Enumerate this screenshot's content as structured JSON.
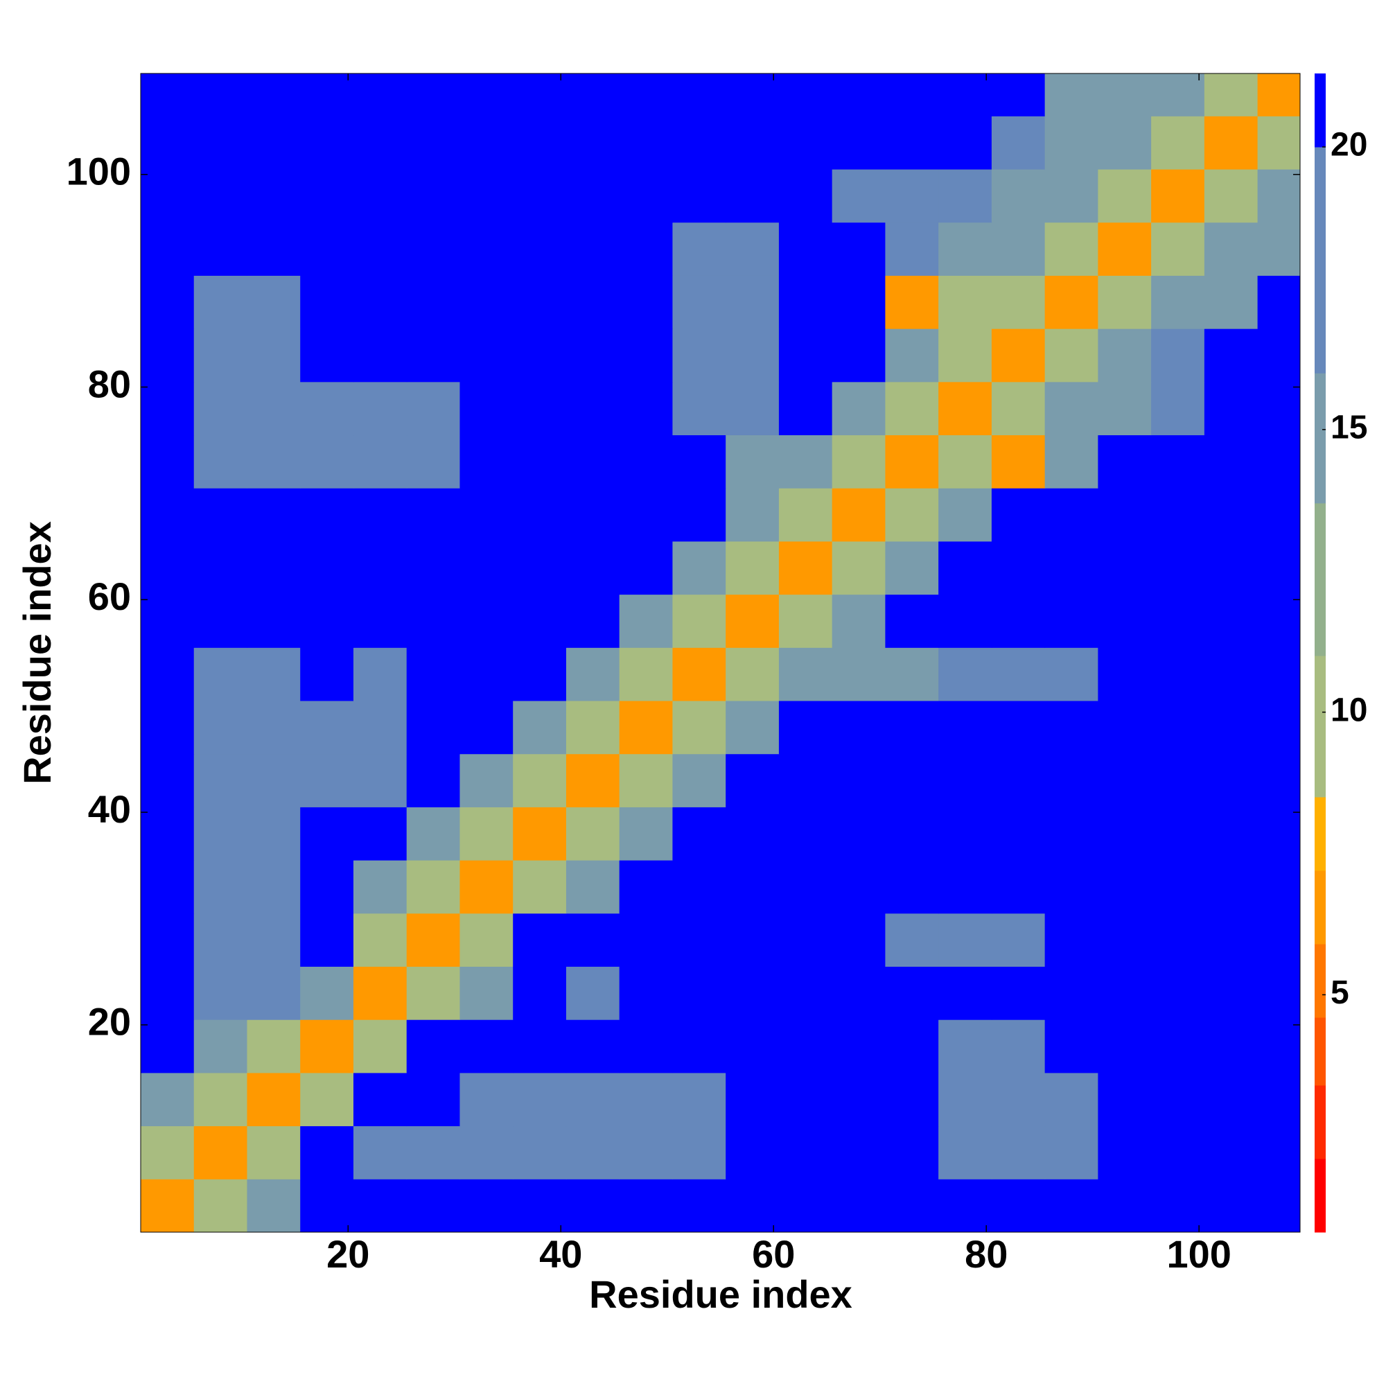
{
  "chart_data": {
    "type": "heatmap",
    "xlabel": "Residue index",
    "ylabel": "Residue index",
    "x": [
      3,
      8,
      13,
      18,
      23,
      28,
      33,
      38,
      43,
      48,
      53,
      58,
      63,
      68,
      73,
      78,
      83,
      88,
      93,
      98,
      103,
      108
    ],
    "y": [
      3,
      8,
      13,
      18,
      23,
      28,
      33,
      38,
      43,
      48,
      53,
      58,
      63,
      68,
      73,
      78,
      83,
      88,
      93,
      98,
      103,
      108
    ],
    "values": [
      [
        6,
        11,
        15,
        21,
        21,
        21,
        21,
        21,
        21,
        21,
        21,
        21,
        21,
        21,
        21,
        21,
        21,
        21,
        21,
        21,
        21,
        21
      ],
      [
        11,
        6,
        11,
        21,
        17,
        17,
        17,
        17,
        17,
        17,
        17,
        21,
        21,
        21,
        21,
        17,
        17,
        17,
        21,
        21,
        21,
        21
      ],
      [
        15,
        11,
        6,
        11,
        21,
        21,
        17,
        17,
        17,
        17,
        17,
        21,
        21,
        21,
        21,
        17,
        17,
        17,
        21,
        21,
        21,
        21
      ],
      [
        21,
        15,
        11,
        6,
        11,
        21,
        21,
        21,
        21,
        21,
        21,
        21,
        21,
        21,
        21,
        17,
        17,
        21,
        21,
        21,
        21,
        21
      ],
      [
        21,
        17,
        17,
        15,
        6,
        11,
        15,
        21,
        17,
        21,
        21,
        21,
        21,
        21,
        21,
        21,
        21,
        21,
        21,
        21,
        21,
        21
      ],
      [
        21,
        17,
        17,
        21,
        11,
        6,
        11,
        21,
        21,
        21,
        21,
        21,
        21,
        21,
        17,
        17,
        17,
        21,
        21,
        21,
        21,
        21
      ],
      [
        21,
        17,
        17,
        21,
        15,
        11,
        6,
        11,
        15,
        21,
        21,
        21,
        21,
        21,
        21,
        21,
        21,
        21,
        21,
        21,
        21,
        21
      ],
      [
        21,
        17,
        17,
        21,
        21,
        15,
        11,
        6,
        11,
        15,
        21,
        21,
        21,
        21,
        21,
        21,
        21,
        21,
        21,
        21,
        21,
        21
      ],
      [
        21,
        17,
        17,
        17,
        17,
        21,
        15,
        11,
        6,
        11,
        15,
        21,
        21,
        21,
        21,
        21,
        21,
        21,
        21,
        21,
        21,
        21
      ],
      [
        21,
        17,
        17,
        17,
        17,
        21,
        21,
        15,
        11,
        6,
        11,
        15,
        21,
        21,
        21,
        21,
        21,
        21,
        21,
        21,
        21,
        21
      ],
      [
        21,
        17,
        17,
        21,
        17,
        21,
        21,
        21,
        15,
        11,
        6,
        11,
        15,
        15,
        15,
        17,
        17,
        17,
        21,
        21,
        21,
        21
      ],
      [
        21,
        21,
        21,
        21,
        21,
        21,
        21,
        21,
        21,
        15,
        11,
        6,
        11,
        15,
        21,
        21,
        21,
        21,
        21,
        21,
        21,
        21
      ],
      [
        21,
        21,
        21,
        21,
        21,
        21,
        21,
        21,
        21,
        21,
        15,
        11,
        6,
        11,
        15,
        21,
        21,
        21,
        21,
        21,
        21,
        21
      ],
      [
        21,
        21,
        21,
        21,
        21,
        21,
        21,
        21,
        21,
        21,
        21,
        15,
        11,
        6,
        11,
        15,
        21,
        21,
        21,
        21,
        21,
        21
      ],
      [
        21,
        17,
        17,
        17,
        17,
        17,
        21,
        21,
        21,
        21,
        21,
        15,
        15,
        11,
        6,
        11,
        6,
        15,
        21,
        21,
        21,
        21
      ],
      [
        21,
        17,
        17,
        17,
        17,
        17,
        21,
        21,
        21,
        21,
        17,
        17,
        21,
        15,
        11,
        6,
        11,
        15,
        15,
        17,
        21,
        21
      ],
      [
        21,
        17,
        17,
        21,
        21,
        21,
        21,
        21,
        21,
        21,
        17,
        17,
        21,
        21,
        15,
        11,
        6,
        11,
        15,
        17,
        21,
        21
      ],
      [
        21,
        17,
        17,
        21,
        21,
        21,
        21,
        21,
        21,
        21,
        17,
        17,
        21,
        21,
        6,
        11,
        11,
        6,
        11,
        15,
        15,
        21
      ],
      [
        21,
        21,
        21,
        21,
        21,
        21,
        21,
        21,
        21,
        21,
        17,
        17,
        21,
        21,
        17,
        15,
        15,
        11,
        6,
        11,
        15,
        15
      ],
      [
        21,
        21,
        21,
        21,
        21,
        21,
        21,
        21,
        21,
        21,
        21,
        21,
        21,
        17,
        17,
        17,
        15,
        15,
        11,
        6,
        11,
        15
      ],
      [
        21,
        21,
        21,
        21,
        21,
        21,
        21,
        21,
        21,
        21,
        21,
        21,
        21,
        21,
        21,
        21,
        17,
        15,
        15,
        11,
        6,
        11
      ],
      [
        21,
        21,
        21,
        21,
        21,
        21,
        21,
        21,
        21,
        21,
        21,
        21,
        21,
        21,
        21,
        21,
        21,
        15,
        15,
        15,
        11,
        6
      ]
    ],
    "xlim": [
      0.5,
      109.5
    ],
    "ylim": [
      0.5,
      109.5
    ],
    "xticks": [
      20,
      40,
      60,
      80,
      100
    ],
    "yticks": [
      20,
      40,
      60,
      80,
      100
    ],
    "colorbar": {
      "lim": [
        0.8,
        21.3
      ],
      "ticks": [
        5,
        10,
        15,
        20
      ],
      "levels": [
        0.8,
        2.1,
        3.4,
        4.6,
        5.9,
        7.2,
        8.5,
        11,
        13.7,
        16,
        20,
        21.3
      ],
      "colors": [
        "#ff0000",
        "#ff2a00",
        "#ff5500",
        "#ff7700",
        "#ff9900",
        "#ffb000",
        "#a8bc80",
        "#92b08c",
        "#7a9cac",
        "#6688bb",
        "#0000ff"
      ]
    }
  }
}
